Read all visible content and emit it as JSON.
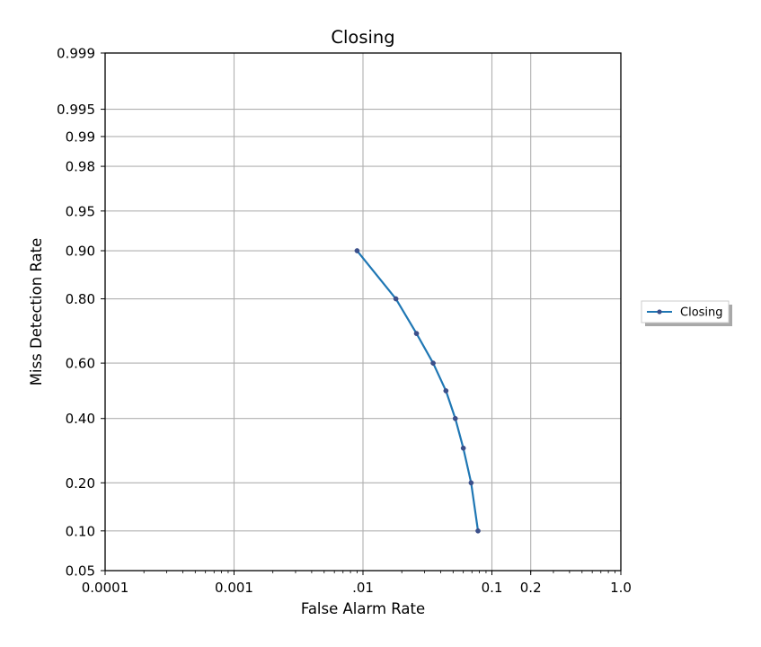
{
  "chart_data": {
    "type": "line",
    "title": "Closing",
    "xlabel": "False Alarm Rate",
    "ylabel": "Miss Detection Rate",
    "x_scale": "log",
    "y_scale": "normal-deviate (probit)",
    "xlim": [
      0.0001,
      1.0
    ],
    "ylim": [
      0.05,
      0.999
    ],
    "grid": true,
    "legend_position": "right",
    "x_ticks": [
      {
        "value": 0.0001,
        "label": "0.0001"
      },
      {
        "value": 0.001,
        "label": "0.001"
      },
      {
        "value": 0.01,
        "label": ".01"
      },
      {
        "value": 0.1,
        "label": "0.1"
      },
      {
        "value": 0.2,
        "label": "0.2"
      },
      {
        "value": 1.0,
        "label": "1.0"
      }
    ],
    "y_ticks": [
      {
        "value": 0.05,
        "label": "0.05"
      },
      {
        "value": 0.1,
        "label": "0.10"
      },
      {
        "value": 0.2,
        "label": "0.20"
      },
      {
        "value": 0.4,
        "label": "0.40"
      },
      {
        "value": 0.6,
        "label": "0.60"
      },
      {
        "value": 0.8,
        "label": "0.80"
      },
      {
        "value": 0.9,
        "label": "0.90"
      },
      {
        "value": 0.95,
        "label": "0.95"
      },
      {
        "value": 0.98,
        "label": "0.98"
      },
      {
        "value": 0.99,
        "label": "0.99"
      },
      {
        "value": 0.995,
        "label": "0.995"
      },
      {
        "value": 0.999,
        "label": "0.999"
      }
    ],
    "series": [
      {
        "name": "Closing",
        "color": "#1f77b4",
        "marker_color": "#3b4f8a",
        "points": [
          {
            "x": 0.009,
            "y": 0.9
          },
          {
            "x": 0.018,
            "y": 0.8
          },
          {
            "x": 0.026,
            "y": 0.7
          },
          {
            "x": 0.035,
            "y": 0.6
          },
          {
            "x": 0.044,
            "y": 0.5
          },
          {
            "x": 0.052,
            "y": 0.4
          },
          {
            "x": 0.06,
            "y": 0.3
          },
          {
            "x": 0.069,
            "y": 0.2
          },
          {
            "x": 0.078,
            "y": 0.1
          }
        ]
      }
    ]
  }
}
